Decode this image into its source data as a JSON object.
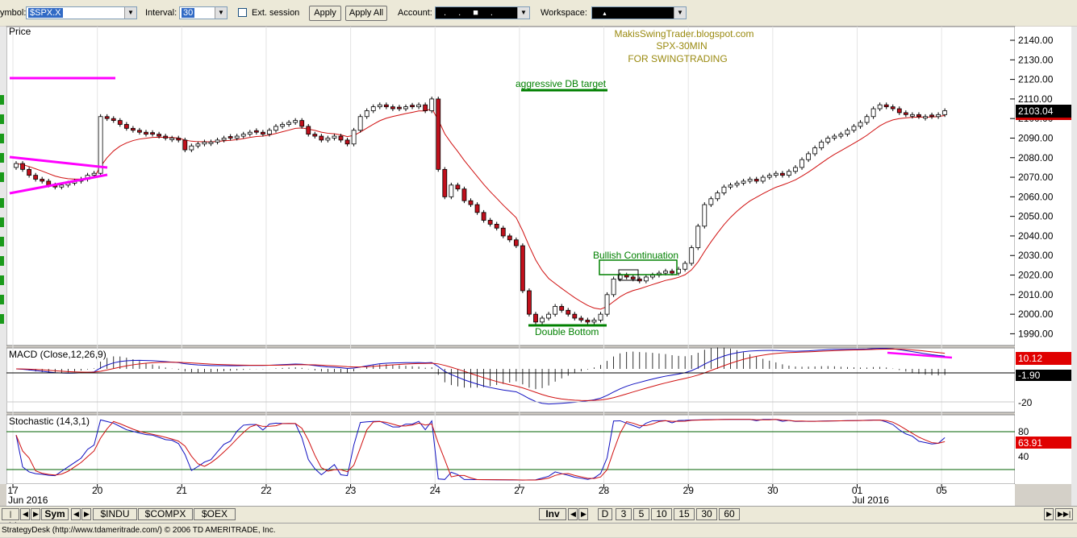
{
  "toolbar": {
    "symbol_label": "ymbol:",
    "symbol_value": "$SPX.X",
    "interval_label": "Interval:",
    "interval_value": "30",
    "ext_session_label": "Ext. session",
    "apply_label": "Apply",
    "apply_all_label": "Apply All",
    "account_label": "Account:",
    "account_value": ". . ■ .",
    "workspace_label": "Workspace:",
    "workspace_value": "▲"
  },
  "tabs": {
    "sym_label": "Sym",
    "symbols": [
      "$INDU",
      "$COMPX",
      "$OEX"
    ],
    "inv_label": "Inv",
    "intervals": [
      "D",
      "3",
      "5",
      "10",
      "15",
      "30",
      "60"
    ]
  },
  "status_text": "StrategyDesk (http://www.tdameritrade.com/) © 2006 TD AMERITRADE, Inc.",
  "colors": {
    "up": "#ffffff",
    "down": "#c0101c",
    "ema": "#d01010",
    "macd": "#1010c0",
    "signal": "#d01010",
    "magenta": "#ff00ff",
    "annot_green": "#008000",
    "title_olive": "#9a8a10"
  },
  "chart_data": [
    {
      "type": "candlestick",
      "panel": "price",
      "title": "Price",
      "watermark": [
        "MakisSwingTrader.blogspot.com",
        "SPX-30MIN",
        "FOR SWINGTRADING"
      ],
      "y_ticks": [
        1990,
        2000,
        2010,
        2020,
        2030,
        2040,
        2050,
        2060,
        2070,
        2080,
        2090,
        2100,
        2110,
        2120,
        2130,
        2140
      ],
      "ylim": [
        1984,
        2147
      ],
      "last_price": "2103.04",
      "x_labels": [
        {
          "x": 0,
          "label": "17"
        },
        {
          "x": 13,
          "label": "20"
        },
        {
          "x": 26,
          "label": "21"
        },
        {
          "x": 39,
          "label": "22"
        },
        {
          "x": 52,
          "label": "23"
        },
        {
          "x": 65,
          "label": "24"
        },
        {
          "x": 78,
          "label": "27"
        },
        {
          "x": 91,
          "label": "28"
        },
        {
          "x": 104,
          "label": "29"
        },
        {
          "x": 117,
          "label": "30"
        },
        {
          "x": 130,
          "label": "01"
        },
        {
          "x": 143,
          "label": "05"
        }
      ],
      "month_labels": [
        {
          "x": 0,
          "label": "Jun 2016"
        },
        {
          "x": 130,
          "label": "Jul 2016"
        }
      ],
      "bars_per_day": 13,
      "closes": [
        2077,
        2074,
        2071,
        2069,
        2068,
        2066,
        2065,
        2066,
        2067,
        2068,
        2069,
        2071,
        2072,
        2101,
        2100,
        2099,
        2097,
        2095,
        2094,
        2093,
        2092,
        2092,
        2091,
        2090,
        2090,
        2089,
        2084,
        2086,
        2087,
        2088,
        2088,
        2089,
        2090,
        2090,
        2091,
        2092,
        2093,
        2093,
        2092,
        2094,
        2096,
        2097,
        2098,
        2099,
        2096,
        2092,
        2091,
        2089,
        2090,
        2091,
        2089,
        2087,
        2094,
        2101,
        2104,
        2106,
        2107,
        2106,
        2105,
        2105,
        2106,
        2106,
        2107,
        2104,
        2110,
        2074,
        2060,
        2066,
        2064,
        2058,
        2056,
        2052,
        2048,
        2046,
        2044,
        2040,
        2038,
        2035,
        2012,
        2000,
        1996,
        1998,
        2000,
        2004,
        2002,
        2000,
        1998,
        1997,
        1996,
        1997,
        2000,
        2010,
        2018,
        2020,
        2019,
        2018,
        2017,
        2019,
        2020,
        2021,
        2022,
        2021,
        2023,
        2026,
        2034,
        2045,
        2056,
        2059,
        2062,
        2065,
        2066,
        2067,
        2068,
        2069,
        2068,
        2070,
        2071,
        2072,
        2071,
        2073,
        2075,
        2079,
        2082,
        2085,
        2088,
        2090,
        2091,
        2092,
        2094,
        2096,
        2098,
        2101,
        2105,
        2107,
        2106,
        2105,
        2103,
        2102,
        2102,
        2101,
        2101,
        2101,
        2102,
        2104
      ],
      "annotations": [
        {
          "text": "aggressive DB target",
          "price": 2115
        },
        {
          "text": "Bullish Continuation",
          "price": 2029
        },
        {
          "text": "Double Bottom",
          "price": 1989
        }
      ]
    },
    {
      "type": "line",
      "panel": "macd",
      "title": "MACD (Close,12,26,9)",
      "y_ticks": [
        -20.0
      ],
      "ylim": [
        -29,
        14
      ],
      "value_labels": [
        "10.12",
        "-1.90"
      ],
      "series": [
        {
          "name": "MACD"
        },
        {
          "name": "Signal"
        },
        {
          "name": "Histogram"
        }
      ]
    },
    {
      "type": "line",
      "panel": "stochastic",
      "title": "Stochastic (14,3,1)",
      "y_ticks": [
        40.0,
        80.0
      ],
      "ylim": [
        -5,
        105
      ],
      "value_label": "63.91",
      "series": [
        {
          "name": "%K"
        },
        {
          "name": "%D"
        }
      ]
    }
  ]
}
